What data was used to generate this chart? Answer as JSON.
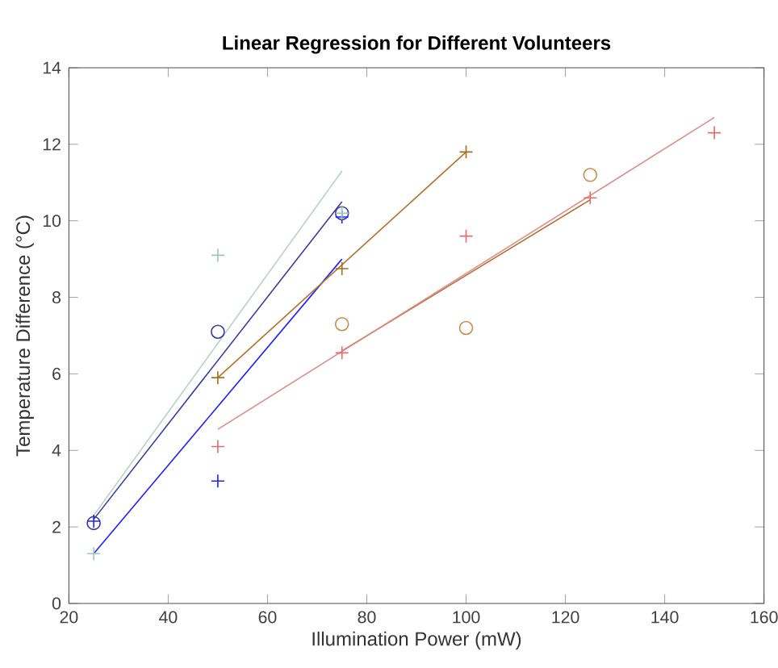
{
  "chart_data": {
    "type": "scatter",
    "title": "Linear Regression for Different Volunteers",
    "xlabel": "Illumination Power (mW)",
    "ylabel": "Temperature Difference (°C)",
    "xlim": [
      20,
      160
    ],
    "ylim": [
      0,
      14
    ],
    "xticks": [
      20,
      40,
      60,
      80,
      100,
      120,
      140,
      160
    ],
    "yticks": [
      0,
      2,
      4,
      6,
      8,
      10,
      12,
      14
    ],
    "series": [
      {
        "type": "scatter",
        "marker": "circle",
        "color": "#3a3aa0",
        "x": [
          25,
          50,
          75
        ],
        "values": [
          2.1,
          7.1,
          10.2
        ]
      },
      {
        "type": "line",
        "color": "#3a3aa0",
        "x": [
          25,
          75
        ],
        "values": [
          2.2,
          10.5
        ]
      },
      {
        "type": "scatter",
        "marker": "cross",
        "color": "#2020ff",
        "x": [
          25,
          50,
          75
        ],
        "values": [
          2.15,
          3.2,
          10.1
        ]
      },
      {
        "type": "line",
        "color": "#2020ff",
        "x": [
          25,
          75
        ],
        "values": [
          1.3,
          9.0
        ]
      },
      {
        "type": "scatter",
        "marker": "cross",
        "color": "#9cc8b4",
        "x": [
          25,
          50,
          75
        ],
        "values": [
          1.3,
          9.1,
          10.2
        ]
      },
      {
        "type": "line",
        "color": "#b4d4c6",
        "x": [
          25,
          75
        ],
        "values": [
          2.3,
          11.3
        ]
      },
      {
        "type": "scatter",
        "marker": "cross",
        "color": "#a86c20",
        "x": [
          50,
          75,
          100
        ],
        "values": [
          5.9,
          8.75,
          11.8
        ]
      },
      {
        "type": "line",
        "color": "#b07428",
        "x": [
          50,
          100
        ],
        "values": [
          5.9,
          11.8
        ]
      },
      {
        "type": "scatter",
        "marker": "circle",
        "color": "#c88c48",
        "x": [
          75,
          100,
          125
        ],
        "values": [
          7.3,
          7.2,
          11.2
        ]
      },
      {
        "type": "line",
        "color": "#b07030",
        "x": [
          75,
          125
        ],
        "values": [
          6.6,
          10.55
        ]
      },
      {
        "type": "scatter",
        "marker": "cross",
        "color": "#e06c6c",
        "x": [
          50,
          75,
          100,
          125,
          150
        ],
        "values": [
          4.1,
          6.55,
          9.6,
          10.6,
          12.3
        ]
      },
      {
        "type": "line",
        "color": "#e08c8c",
        "x": [
          50,
          150
        ],
        "values": [
          4.55,
          12.7
        ]
      }
    ]
  }
}
